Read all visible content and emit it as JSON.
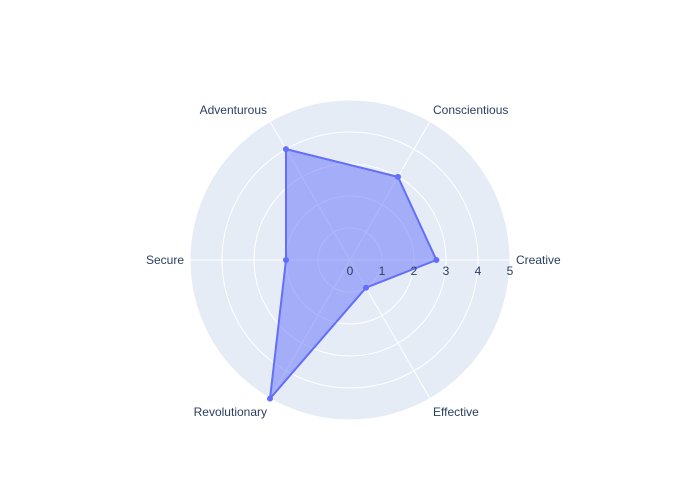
{
  "chart_data": {
    "type": "radar",
    "title": "",
    "categories": [
      "Creative",
      "Conscientious",
      "Adventurous",
      "Secure",
      "Revolutionary",
      "Effective"
    ],
    "series": [
      {
        "values": [
          2.7,
          3.0,
          4.0,
          2.0,
          5.0,
          1.0
        ],
        "color": "#636efa",
        "fill": true
      }
    ],
    "radial_ticks": [
      "0",
      "1",
      "2",
      "3",
      "4",
      "5"
    ],
    "radial_range": [
      0,
      5
    ],
    "background_color": "#e5ecf6",
    "grid_color": "#ffffff",
    "angular_direction": "counterclockwise",
    "start_angle_deg": 0
  }
}
